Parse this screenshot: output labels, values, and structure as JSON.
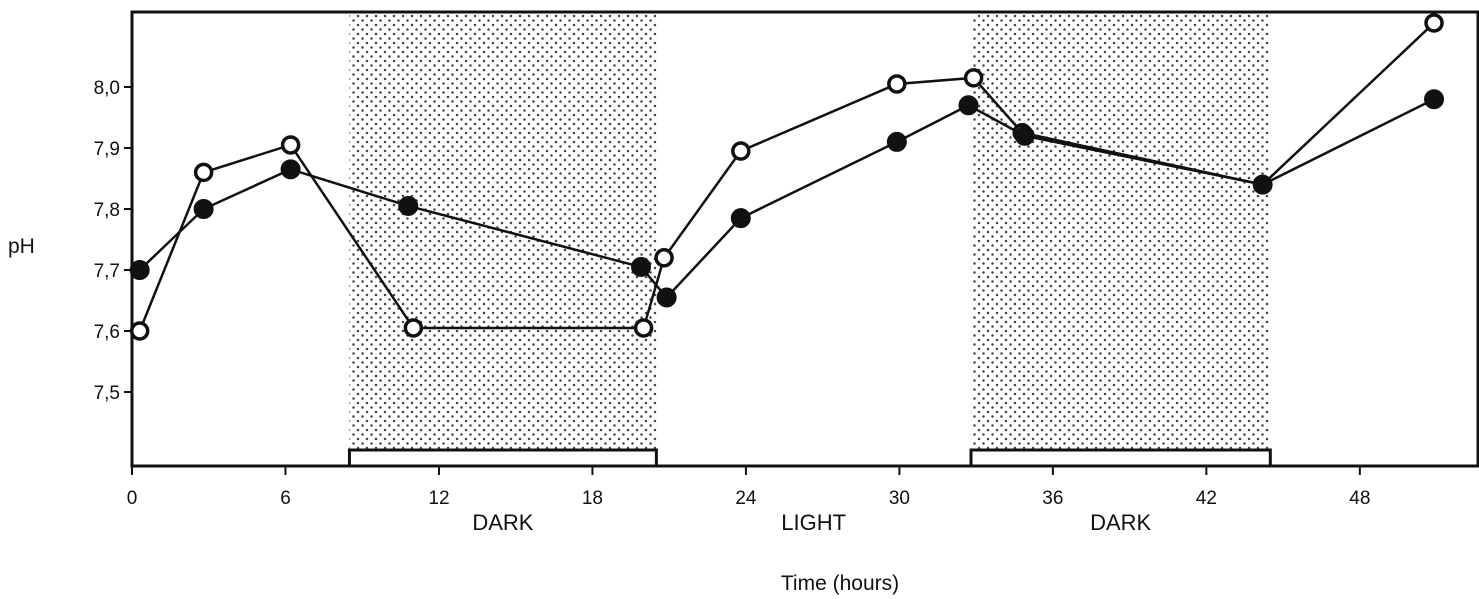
{
  "chart_data": {
    "type": "line",
    "title": "",
    "xlabel": "Time (hours)",
    "ylabel": "pH",
    "xlim": [
      0,
      52.5
    ],
    "ylim": [
      7.38,
      8.13
    ],
    "x_ticks": [
      0,
      6,
      12,
      18,
      24,
      30,
      36,
      42,
      48
    ],
    "x_tick_labels": [
      "0",
      "6",
      "12",
      "18",
      "24",
      "30",
      "36",
      "42",
      "48"
    ],
    "y_ticks": [
      7.5,
      7.6,
      7.7,
      7.8,
      7.9,
      8.0
    ],
    "y_tick_labels": [
      "7,5",
      "7,6",
      "7,7",
      "7,8",
      "7,9",
      "8,0"
    ],
    "grid": false,
    "periods": [
      {
        "label": "DARK",
        "start": 8.5,
        "end": 20.5,
        "shaded": true
      },
      {
        "label": "LIGHT",
        "start": 20.5,
        "end": 32.8,
        "shaded": false
      },
      {
        "label": "DARK",
        "start": 32.8,
        "end": 44.5,
        "shaded": true
      }
    ],
    "series": [
      {
        "marker": "open-circle",
        "color": "#111111",
        "x": [
          0.3,
          2.8,
          6.2,
          11.0,
          20.0,
          20.8,
          23.8,
          29.9,
          32.9,
          34.8,
          44.2,
          50.9
        ],
        "y": [
          7.6,
          7.86,
          7.905,
          7.605,
          7.605,
          7.72,
          7.895,
          8.005,
          8.015,
          7.925,
          7.84,
          8.105
        ]
      },
      {
        "marker": "filled-circle",
        "color": "#111111",
        "x": [
          0.3,
          2.8,
          6.2,
          10.8,
          19.9,
          20.9,
          23.8,
          29.9,
          32.7,
          34.9,
          44.2,
          50.9
        ],
        "y": [
          7.7,
          7.8,
          7.865,
          7.805,
          7.705,
          7.655,
          7.785,
          7.91,
          7.97,
          7.92,
          7.84,
          7.98
        ]
      }
    ]
  }
}
